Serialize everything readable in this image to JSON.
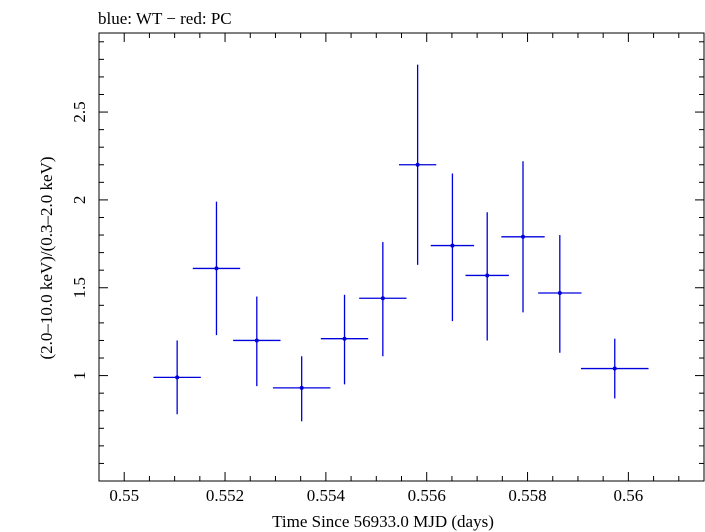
{
  "chart_data": {
    "type": "scatter",
    "title": "blue: WT − red: PC",
    "xlabel": "Time Since 56933.0 MJD (days)",
    "ylabel": "(2.0–10.0 keV)/(0.3–2.0 keV)",
    "xlim": [
      0.5495,
      0.5615
    ],
    "ylim": [
      0.4,
      2.95
    ],
    "x_ticks": [
      0.55,
      0.552,
      0.554,
      0.556,
      0.558,
      0.56
    ],
    "x_tick_labels": [
      "0.55",
      "0.552",
      "0.554",
      "0.556",
      "0.558",
      "0.56"
    ],
    "y_ticks": [
      1,
      1.5,
      2,
      2.5
    ],
    "y_tick_labels": [
      "1",
      "1.5",
      "2",
      "2.5"
    ],
    "grid": false,
    "legend": "none",
    "colors": {
      "WT": "#0000dd",
      "axes": "#000000"
    },
    "series": [
      {
        "name": "WT",
        "color": "#0000dd",
        "points": [
          {
            "x": 0.55105,
            "y": 0.99,
            "xerr": 0.00047,
            "ylo": 0.78,
            "yhi": 1.2
          },
          {
            "x": 0.55183,
            "y": 1.61,
            "xerr": 0.00047,
            "ylo": 1.23,
            "yhi": 1.99
          },
          {
            "x": 0.55263,
            "y": 1.2,
            "xerr": 0.00047,
            "ylo": 0.94,
            "yhi": 1.45
          },
          {
            "x": 0.55352,
            "y": 0.93,
            "xerr": 0.00057,
            "ylo": 0.74,
            "yhi": 1.11
          },
          {
            "x": 0.55437,
            "y": 1.21,
            "xerr": 0.00047,
            "ylo": 0.95,
            "yhi": 1.46
          },
          {
            "x": 0.55513,
            "y": 1.44,
            "xerr": 0.00047,
            "ylo": 1.11,
            "yhi": 1.76
          },
          {
            "x": 0.55582,
            "y": 2.2,
            "xerr": 0.00037,
            "ylo": 1.63,
            "yhi": 2.77
          },
          {
            "x": 0.55651,
            "y": 1.74,
            "xerr": 0.00043,
            "ylo": 1.31,
            "yhi": 2.15
          },
          {
            "x": 0.5572,
            "y": 1.57,
            "xerr": 0.00043,
            "ylo": 1.2,
            "yhi": 1.93
          },
          {
            "x": 0.55791,
            "y": 1.79,
            "xerr": 0.00043,
            "ylo": 1.36,
            "yhi": 2.22
          },
          {
            "x": 0.55864,
            "y": 1.47,
            "xerr": 0.00043,
            "ylo": 1.13,
            "yhi": 1.8
          },
          {
            "x": 0.55973,
            "y": 1.04,
            "xerr": 0.00067,
            "ylo": 0.87,
            "yhi": 1.21
          }
        ]
      }
    ]
  }
}
